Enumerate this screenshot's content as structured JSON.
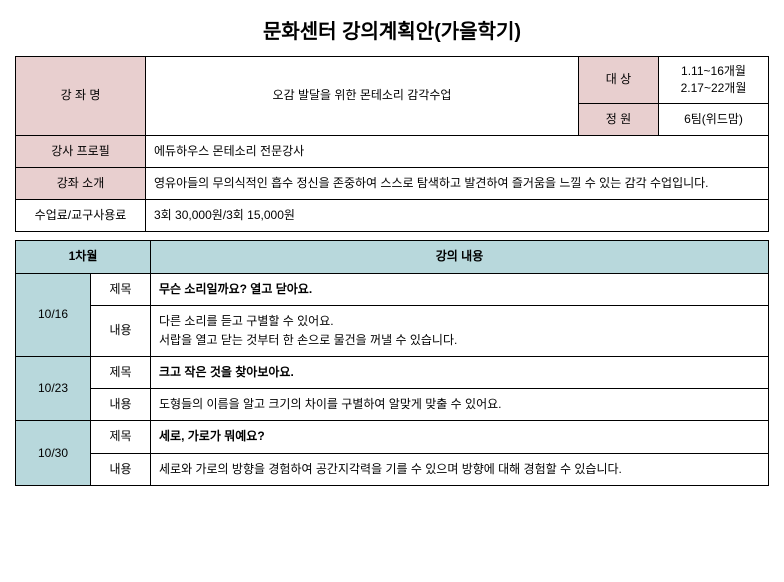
{
  "title": "문화센터 강의계획안(가을학기)",
  "info_table": {
    "course_name_label": "강 좌 명",
    "course_name_value": "오감 발달을 위한  몬테소리 감각수업",
    "target_label": "대 상",
    "target_value_line1": "1.11~16개월",
    "target_value_line2": "2.17~22개월",
    "capacity_label": "정 원",
    "capacity_value": "6팀(위드맘)",
    "instructor_label": "강사 프로필",
    "instructor_value": "에듀하우스 몬테소리 전문강사",
    "intro_label": "강좌 소개",
    "intro_value": "영유아들의 무의식적인 흡수 정신을 존중하여 스스로 탐색하고  발견하여 즐거움을 느낄 수 있는 감각 수업입니다.",
    "fee_label": "수업료/교구사용료",
    "fee_value": "3회 30,000원/3회 15,000원"
  },
  "schedule": {
    "month_header": "1차월",
    "content_header": "강의 내용",
    "title_label": "제목",
    "content_label": "내용",
    "sessions": [
      {
        "date": "10/16",
        "title": "무슨 소리일까요? 열고 닫아요.",
        "content": "다른 소리를 듣고 구별할 수 있어요.\n서랍을 열고 닫는 것부터 한 손으로 물건을 꺼낼 수 있습니다."
      },
      {
        "date": "10/23",
        "title": "크고 작은 것을 찾아보아요.",
        "content": "도형들의 이름을 알고 크기의 차이를 구별하여 알맞게 맞출 수 있어요."
      },
      {
        "date": "10/30",
        "title": "세로, 가로가 뭐예요?",
        "content": "세로와 가로의 방향을 경험하여 공간지각력을 기를 수 있으며 방향에 대해 경험할 수 있습니다."
      }
    ]
  },
  "colors": {
    "pink_header": "#e8cfcf",
    "blue_header": "#b8d8dc",
    "border": "#000000",
    "background": "#ffffff"
  }
}
